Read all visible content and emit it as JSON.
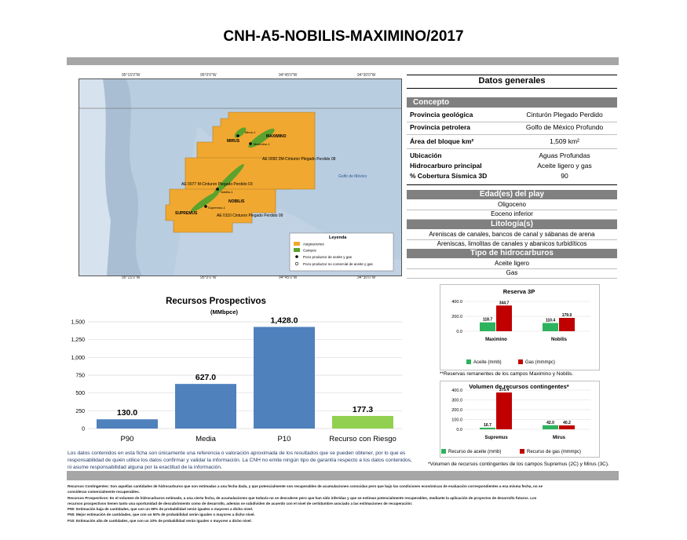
{
  "title": "CNH-A5-NOBILIS-MAXIMINO/2017",
  "map": {
    "lon_ticks": [
      "95°15'0\"W",
      "95°0'0\"W",
      "94°45'0\"W",
      "94°30'0\"W"
    ],
    "lat_ticks": [
      "26°0'0\"N",
      "25°45'0\"N",
      "25°30'0\"N"
    ],
    "labels": {
      "area1": "AE 0092 2M-Cinturon Plegado Perdido 08",
      "area2": "AE 0077 M-Cinturon Plegado Perdido 03",
      "area3": "AE 0110 Cinturon Plegado Perdido 09",
      "gulf": "Golfo de México",
      "mirus": "MIRUS",
      "maximino": "MAXIMINO",
      "nobilis": "NOBILIS",
      "supremus": "SUPREMUS",
      "well_mirus": "Mirus-1",
      "well_maximino": "Maximino-1",
      "well_nobilis": "Nobilis-1",
      "well_supremus": "Supremus-1"
    },
    "legend": {
      "title": "Leyenda",
      "items": [
        "Asignaciones",
        "Campos",
        "Pozo productor de aceite y gas",
        "Pozo productor no comercial de aceite y gas"
      ]
    },
    "colors": {
      "asignaciones": "#f0a830",
      "campos": "#5ba22e",
      "sea": "#b8cde0"
    }
  },
  "datos": {
    "title": "Datos generales",
    "concepto": "Concepto",
    "rows": [
      {
        "k": "Provincia geológica",
        "v": "Cinturón Plegado Perdido"
      },
      {
        "k": "Provincia petrolera",
        "v": "Golfo de México Profundo"
      },
      {
        "k": "Área del bloque km²",
        "v": "1,509 km²"
      },
      {
        "k": "Ubicación",
        "v": "Aguas Profundas"
      },
      {
        "k": "Hidrocarburo principal",
        "v": "Aceite ligero y gas"
      },
      {
        "k": "% Cobertura Sísmica 3D",
        "v": "90"
      }
    ],
    "sections": [
      {
        "title": "Edad(es) del play",
        "values": [
          "Oligoceno",
          "Eoceno inferior"
        ]
      },
      {
        "title": "Litología(s)",
        "values": [
          "Areniscas de canales, bancos de canal y sábanas de arena",
          "Areniscas, limolitas de canales y abanicos turbidíticos"
        ]
      },
      {
        "title": "Tipo de hidrocarburos",
        "values": [
          "Aceite ligero",
          "Gas"
        ]
      }
    ]
  },
  "recursos_title": "Recursos Prospectivos",
  "recursos_unit": "(MMbpce)",
  "disclaimer": "Los datos contenidos en esta ficha son únicamente una referencia o valoración aproximada de los resultados que se pueden obtener, por lo que es responsabilidad de quién utilice los datos confirmar y validar la información. La CNH no emite ningún tipo de garantía respecto a los datos contenidos, ni asume responsabilidad alguna por la exactitud de la información.",
  "reserva_note": "**Reservas remanentes de los campos Maximino y Nobilis.",
  "contingentes_note": "*Volumen de recursos contingentes de los campos Supremus (2C) y Mirus (3C).",
  "footnotes": [
    "Recursos Contingentes: Son aquellas cantidades de hidrocarburos que son estimadas a una fecha dada, y que potencialmente son recuperables de acumulaciones conocidas pero que bajo las condiciones económicas de evaluación correspondientes a esa misma fecha, no se",
    "consideran comercialmente recuperables.",
    "Recursos Prospectivos: Es el volumen de hidrocarburos estimado, a una cierta fecha, de acumulaciones que todavía no se descubren pero que han sido inferidas y que se estiman potencialmente recuperables, mediante la aplicación de proyectos de desarrollo futuros. Los",
    "recursos prospectivos tienen tanto una oportunidad de descubrimiento como de desarrollo, además se subdividen de acuerdo con el nivel de certidumbre asociado a las estimaciones de recuperación:",
    "P90: Estimación baja de cantidades, que con un 90% de probabilidad serán iguales o mayores a dicho nivel.",
    "P50: Mejor estimación de cantidades, que con un 50% de probabilidad serán iguales o mayores a dicho nivel.",
    "P10: Estimación alta de cantidades, que con un 10% de probabilidad serán iguales o mayores a dicho nivel."
  ],
  "chart_data": [
    {
      "type": "bar",
      "title": "Recursos Prospectivos",
      "ylabel": "(MMbpce)",
      "categories": [
        "P90",
        "Media",
        "P10",
        "Recurso con Riesgo"
      ],
      "values": [
        130.0,
        627.0,
        1428.0,
        177.3
      ],
      "value_labels": [
        "130.0",
        "627.0",
        "1,428.0",
        "177.3"
      ],
      "ylim": [
        0,
        1500
      ],
      "yticks": [
        0,
        250,
        500,
        750,
        1000,
        1250,
        1500
      ],
      "ytick_labels": [
        "0",
        "250",
        "500",
        "750",
        "1,000",
        "1,250",
        "1,500"
      ],
      "colors": [
        "#4f81bd",
        "#4f81bd",
        "#4f81bd",
        "#92d050"
      ],
      "grid": true
    },
    {
      "type": "bar",
      "title": "Reserva 3P",
      "categories": [
        "Maximino",
        "Nobilis"
      ],
      "series": [
        {
          "name": "Aceite (mmb)",
          "values": [
            118.7,
            110.4
          ],
          "labels": [
            "118.7",
            "110.4"
          ],
          "color": "#2db35d"
        },
        {
          "name": "Gas (mmmpc)",
          "values": [
            344.7,
            179.0
          ],
          "labels": [
            "344.7",
            "179.0"
          ],
          "color": "#c00000"
        }
      ],
      "ylim": [
        0,
        400
      ],
      "yticks": [
        0,
        200,
        400
      ],
      "ytick_labels": [
        "0.0",
        "200.0",
        "400.0"
      ],
      "grid": true
    },
    {
      "type": "bar",
      "title": "Volumen de recursos contingentes*",
      "categories": [
        "Supremus",
        "Mirus"
      ],
      "series": [
        {
          "name": "Recurso de aceite (mmb)",
          "values": [
            16.7,
            42.0
          ],
          "labels": [
            "16.7",
            "42.0"
          ],
          "color": "#2db35d"
        },
        {
          "name": "Recurso de gas (mmmpc)",
          "values": [
            375.4,
            40.2
          ],
          "labels": [
            "375.4",
            "40.2"
          ],
          "color": "#c00000"
        }
      ],
      "ylim": [
        0,
        400
      ],
      "yticks": [
        0,
        100,
        200,
        300,
        400
      ],
      "ytick_labels": [
        "0.0",
        "100.0",
        "200.0",
        "300.0",
        "400.0"
      ],
      "grid": true
    }
  ]
}
